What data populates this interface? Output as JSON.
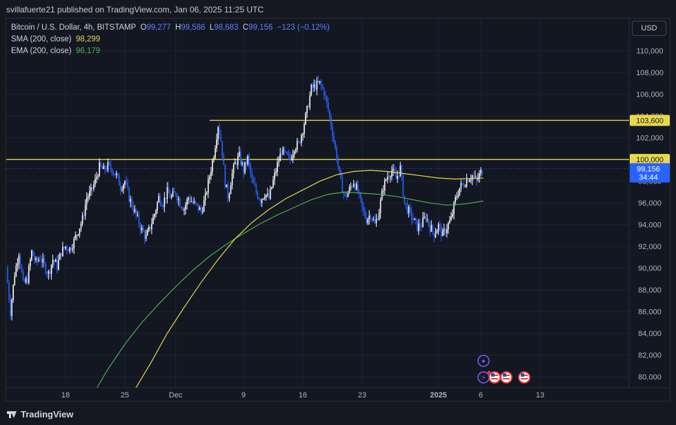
{
  "header": {
    "published": "svillafuerte21 published on TradingView.com, Jan 06, 2025 11:25 UTC"
  },
  "legend": {
    "symbol": "Bitcoin / U.S. Dollar, 4h, BITSTAMP",
    "o_label": "O",
    "o_value": "99,277",
    "h_label": "H",
    "h_value": "99,586",
    "l_label": "L",
    "l_value": "98,683",
    "c_label": "C",
    "c_value": "99,156",
    "change": "−123 (−0.12%)",
    "sma_label": "SMA (200, close)",
    "sma_value": "98,299",
    "ema_label": "EMA (200, close)",
    "ema_value": "96,179"
  },
  "currency_button": "USD",
  "footer": {
    "brand": "TradingView"
  },
  "colors": {
    "up": "#ffffff",
    "down": "#2962ff",
    "sma": "#e8d84c",
    "ema": "#4caf50",
    "level": "#e8d84c",
    "price_badge": "#2962ff"
  },
  "chart_data": {
    "type": "candlestick",
    "symbol": "BTCUSD",
    "timeframe": "4h",
    "ylim": [
      79000,
      111500
    ],
    "y_ticks": [
      80000,
      82000,
      84000,
      86000,
      88000,
      90000,
      92000,
      94000,
      96000,
      98000,
      100000,
      102000,
      104000,
      106000,
      108000,
      110000
    ],
    "y_tick_labels": [
      "80,000",
      "82,000",
      "84,000",
      "86,000",
      "88,000",
      "90,000",
      "92,000",
      "94,000",
      "96,000",
      "98,000",
      "100,000",
      "102,000",
      "104,000",
      "106,000",
      "108,000",
      "110,000"
    ],
    "x_range_days": [
      -7.0,
      66.5
    ],
    "x_ticks": [
      {
        "day": 0,
        "label": "18"
      },
      {
        "day": 7,
        "label": "25"
      },
      {
        "day": 13,
        "label": "Dec"
      },
      {
        "day": 21,
        "label": "9"
      },
      {
        "day": 28,
        "label": "16"
      },
      {
        "day": 35,
        "label": "23"
      },
      {
        "day": 44,
        "label": "2025",
        "bold": true
      },
      {
        "day": 49,
        "label": "6"
      },
      {
        "day": 56,
        "label": "13"
      }
    ],
    "price_path": [
      [
        -7.0,
        90000
      ],
      [
        -6.5,
        86000
      ],
      [
        -6.0,
        89500
      ],
      [
        -5.5,
        91500
      ],
      [
        -5.0,
        88500
      ],
      [
        -4.5,
        89000
      ],
      [
        -4.0,
        91500
      ],
      [
        -3.5,
        90500
      ],
      [
        -3.0,
        91000
      ],
      [
        -2.5,
        90200
      ],
      [
        -2.0,
        89500
      ],
      [
        -1.5,
        90800
      ],
      [
        -1.0,
        90200
      ],
      [
        -0.5,
        91500
      ],
      [
        0.0,
        92000
      ],
      [
        0.5,
        91800
      ],
      [
        1.0,
        92500
      ],
      [
        1.5,
        93500
      ],
      [
        2.0,
        94500
      ],
      [
        2.5,
        96500
      ],
      [
        3.0,
        97000
      ],
      [
        3.5,
        98000
      ],
      [
        4.0,
        99300
      ],
      [
        4.5,
        99000
      ],
      [
        5.0,
        99400
      ],
      [
        5.5,
        99100
      ],
      [
        6.0,
        98500
      ],
      [
        6.5,
        97500
      ],
      [
        7.0,
        98000
      ],
      [
        7.5,
        96500
      ],
      [
        8.0,
        95500
      ],
      [
        8.5,
        94500
      ],
      [
        9.0,
        93500
      ],
      [
        9.5,
        92800
      ],
      [
        10.0,
        93800
      ],
      [
        10.5,
        95000
      ],
      [
        11.0,
        96500
      ],
      [
        11.5,
        96000
      ],
      [
        12.0,
        97000
      ],
      [
        12.5,
        96500
      ],
      [
        13.0,
        97000
      ],
      [
        13.5,
        96000
      ],
      [
        14.0,
        95500
      ],
      [
        14.5,
        96500
      ],
      [
        15.0,
        96000
      ],
      [
        15.5,
        95700
      ],
      [
        16.0,
        95200
      ],
      [
        16.5,
        96500
      ],
      [
        17.0,
        98500
      ],
      [
        17.5,
        100500
      ],
      [
        18.0,
        103200
      ],
      [
        18.4,
        101500
      ],
      [
        18.8,
        98000
      ],
      [
        19.2,
        96500
      ],
      [
        19.6,
        98500
      ],
      [
        20.0,
        99600
      ],
      [
        20.5,
        100300
      ],
      [
        21.0,
        99000
      ],
      [
        21.5,
        100100
      ],
      [
        22.0,
        98000
      ],
      [
        22.5,
        97000
      ],
      [
        23.0,
        96300
      ],
      [
        23.5,
        96900
      ],
      [
        24.0,
        96400
      ],
      [
        24.5,
        98000
      ],
      [
        25.0,
        99500
      ],
      [
        25.5,
        100800
      ],
      [
        26.0,
        100300
      ],
      [
        26.5,
        100000
      ],
      [
        27.0,
        101200
      ],
      [
        27.5,
        101400
      ],
      [
        28.0,
        102800
      ],
      [
        28.5,
        104500
      ],
      [
        29.0,
        106500
      ],
      [
        29.5,
        106800
      ],
      [
        30.0,
        107000
      ],
      [
        30.5,
        106200
      ],
      [
        31.0,
        104500
      ],
      [
        31.5,
        102500
      ],
      [
        32.0,
        100200
      ],
      [
        32.5,
        97800
      ],
      [
        33.0,
        96500
      ],
      [
        33.5,
        97200
      ],
      [
        34.0,
        98000
      ],
      [
        34.5,
        97000
      ],
      [
        35.0,
        95500
      ],
      [
        35.5,
        94500
      ],
      [
        36.0,
        95000
      ],
      [
        36.5,
        94000
      ],
      [
        37.0,
        95300
      ],
      [
        37.5,
        97500
      ],
      [
        38.0,
        98500
      ],
      [
        38.5,
        99000
      ],
      [
        39.0,
        98200
      ],
      [
        39.5,
        99200
      ],
      [
        40.0,
        96000
      ],
      [
        40.5,
        95200
      ],
      [
        41.0,
        94500
      ],
      [
        41.5,
        93800
      ],
      [
        42.0,
        94000
      ],
      [
        42.5,
        94800
      ],
      [
        43.0,
        93800
      ],
      [
        43.5,
        93200
      ],
      [
        44.0,
        93900
      ],
      [
        44.5,
        93000
      ],
      [
        45.0,
        93800
      ],
      [
        45.5,
        94500
      ],
      [
        46.0,
        96300
      ],
      [
        46.5,
        97400
      ],
      [
        47.0,
        97800
      ],
      [
        47.5,
        98300
      ],
      [
        48.0,
        98500
      ],
      [
        48.5,
        98000
      ],
      [
        49.0,
        98800
      ],
      [
        49.3,
        99156
      ]
    ],
    "sma_200": [
      [
        8.3,
        79000
      ],
      [
        10.0,
        81200
      ],
      [
        12.0,
        84000
      ],
      [
        14.0,
        86400
      ],
      [
        16.0,
        88700
      ],
      [
        18.0,
        90800
      ],
      [
        20.0,
        92700
      ],
      [
        22.0,
        94200
      ],
      [
        24.0,
        95400
      ],
      [
        26.0,
        96400
      ],
      [
        28.0,
        97200
      ],
      [
        30.0,
        98000
      ],
      [
        32.0,
        98600
      ],
      [
        34.0,
        98900
      ],
      [
        36.0,
        99000
      ],
      [
        38.0,
        98900
      ],
      [
        40.0,
        98700
      ],
      [
        42.0,
        98500
      ],
      [
        44.0,
        98300
      ],
      [
        46.0,
        98200
      ],
      [
        49.3,
        98299
      ]
    ],
    "ema_200": [
      [
        3.7,
        79000
      ],
      [
        5.0,
        80700
      ],
      [
        7.0,
        83000
      ],
      [
        9.0,
        85000
      ],
      [
        11.0,
        86700
      ],
      [
        13.0,
        88300
      ],
      [
        15.0,
        89800
      ],
      [
        17.0,
        91100
      ],
      [
        19.0,
        92200
      ],
      [
        21.0,
        93200
      ],
      [
        23.0,
        94100
      ],
      [
        25.0,
        94900
      ],
      [
        27.0,
        95600
      ],
      [
        29.0,
        96300
      ],
      [
        31.0,
        96800
      ],
      [
        33.0,
        97000
      ],
      [
        35.0,
        96900
      ],
      [
        37.0,
        96800
      ],
      [
        39.0,
        96600
      ],
      [
        41.0,
        96300
      ],
      [
        43.0,
        96000
      ],
      [
        45.0,
        95800
      ],
      [
        47.0,
        95900
      ],
      [
        49.3,
        96179
      ]
    ],
    "horizontal_levels": [
      {
        "value": 103600,
        "label": "103,600",
        "x_start_day": 17.0
      },
      {
        "value": 100000,
        "label": "100,000",
        "x_start_day": -7.0
      }
    ],
    "last_price": {
      "value": 99156,
      "label": "99,156",
      "countdown": "34:44"
    }
  }
}
